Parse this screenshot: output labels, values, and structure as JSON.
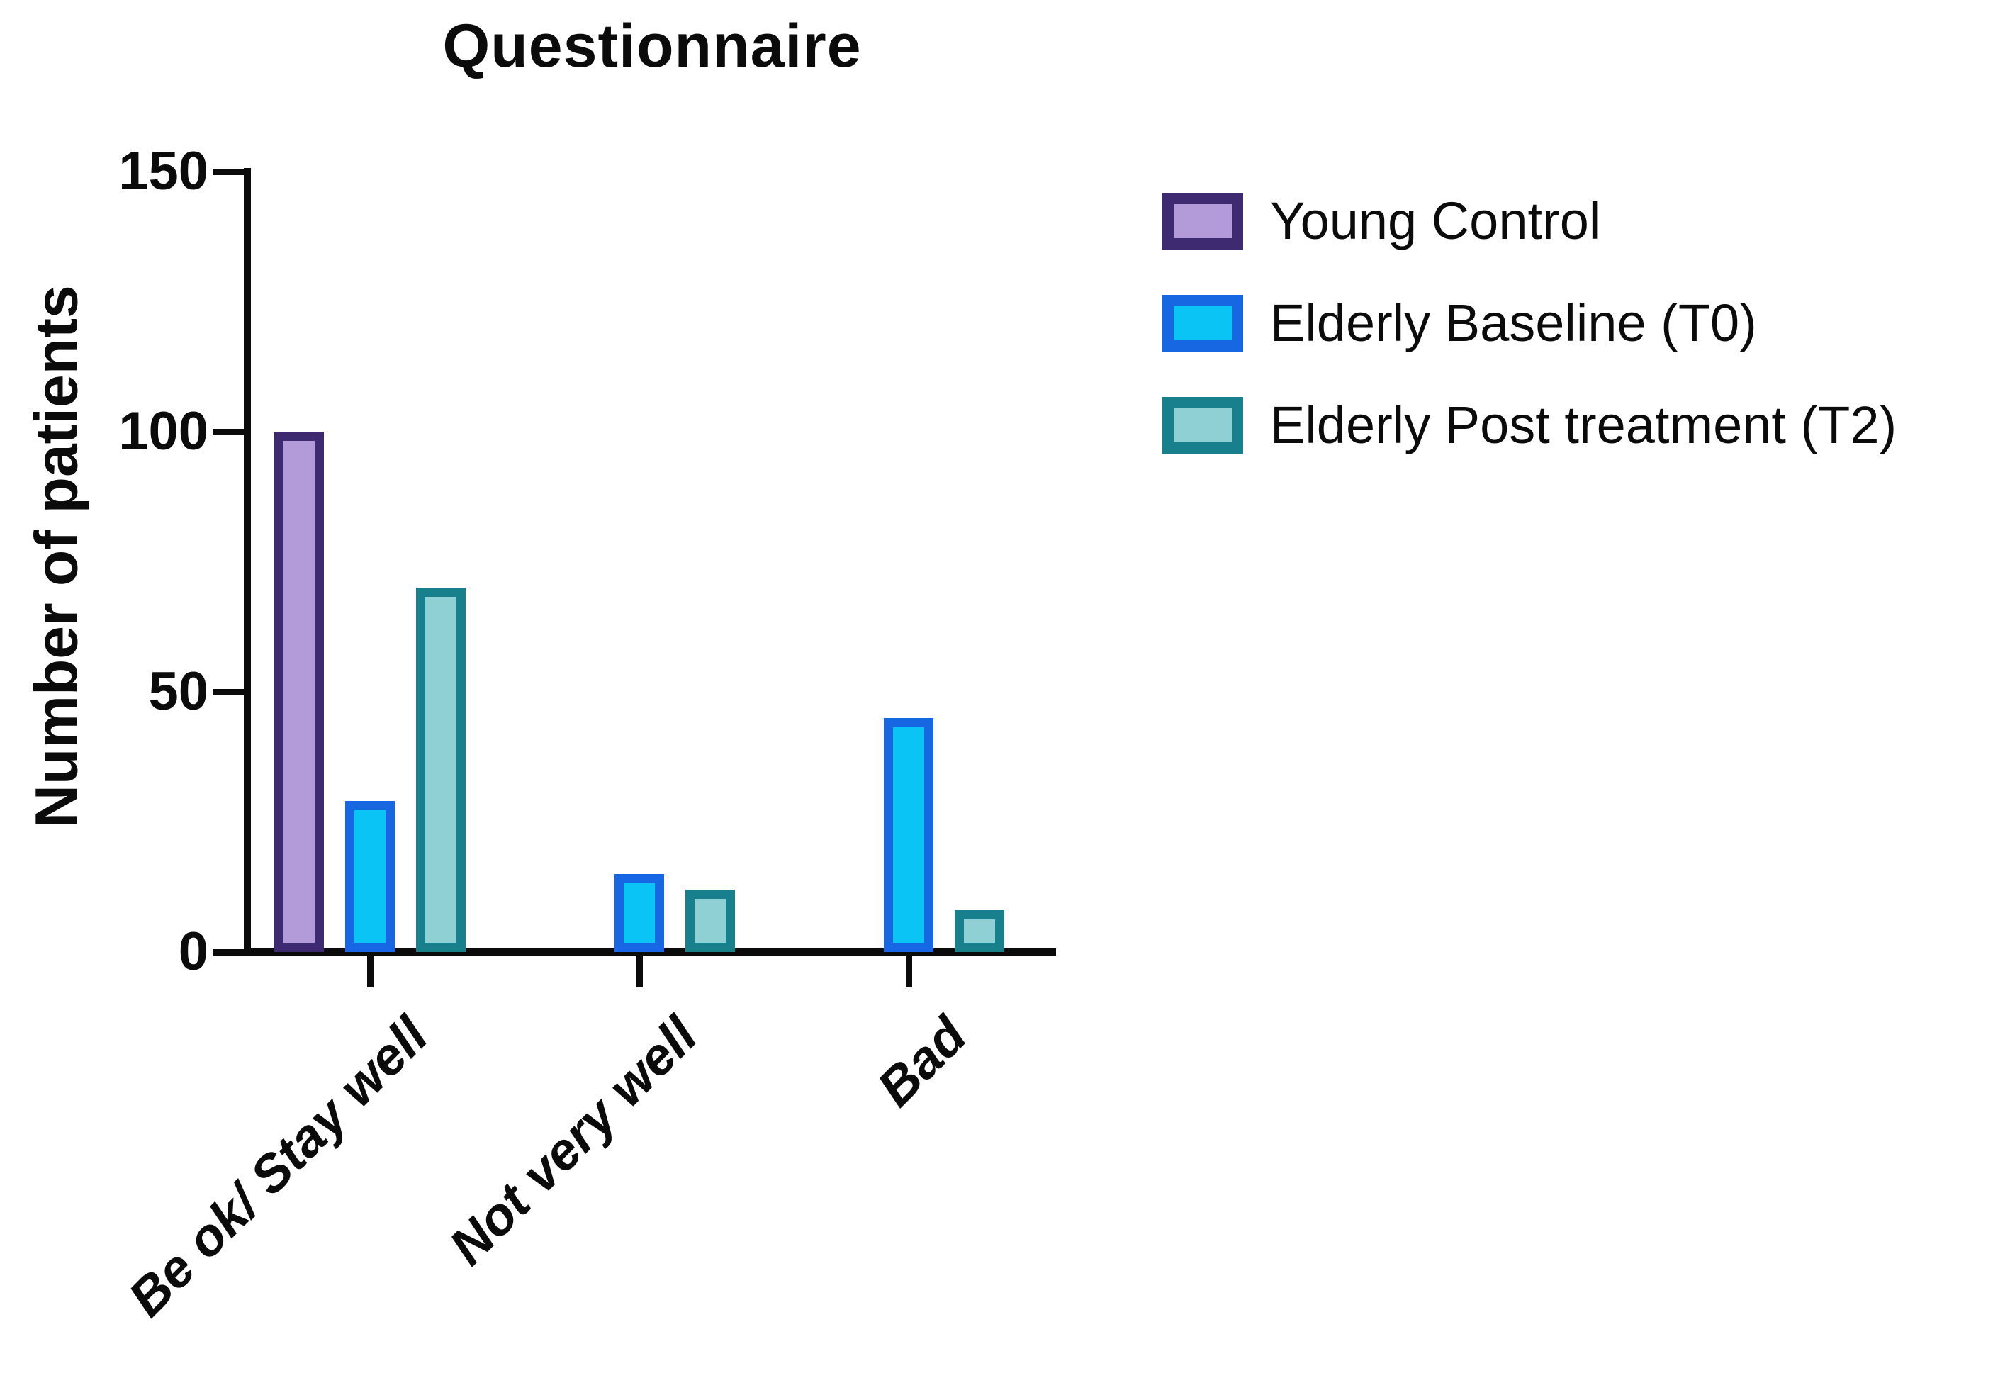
{
  "title": "Questionnaire",
  "chart_data": {
    "type": "bar",
    "title": "Questionnaire",
    "ylabel": "Number of patients",
    "xlabel": "",
    "ylim": [
      0,
      150
    ],
    "yticks": [
      0,
      50,
      100,
      150
    ],
    "grid": false,
    "legend_position": "right",
    "categories": [
      "Be ok/ Stay well",
      "Not very well",
      "Bad"
    ],
    "series": [
      {
        "name": "Young Control",
        "values": [
          100,
          0,
          0
        ],
        "fill": "#B29BD8",
        "border": "#3E2A70"
      },
      {
        "name": "Elderly Baseline (T0)",
        "values": [
          29,
          15,
          45
        ],
        "fill": "#0AC4F6",
        "border": "#1766E2"
      },
      {
        "name": "Elderly Post treatment (T2)",
        "values": [
          70,
          12,
          8
        ],
        "fill": "#8FD0D5",
        "border": "#17808C"
      }
    ],
    "axis_color": "#0b0b0b"
  }
}
